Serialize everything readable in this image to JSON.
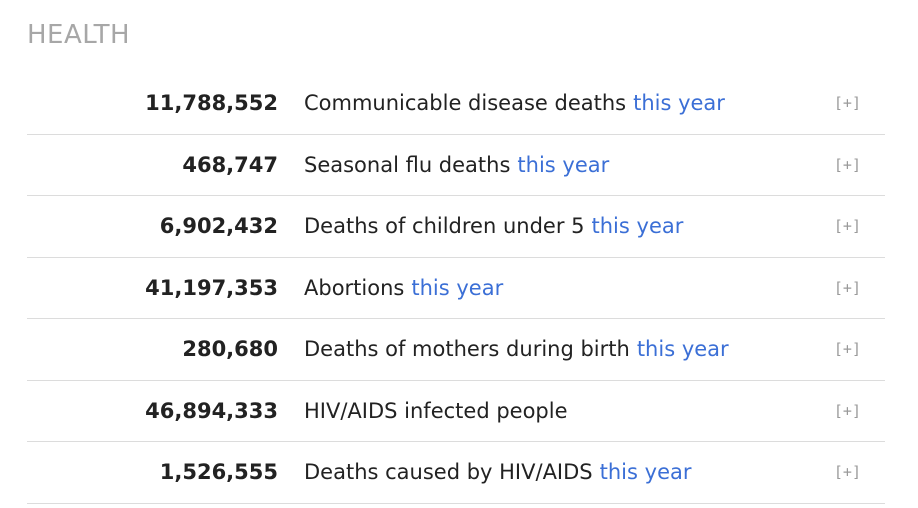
{
  "section": {
    "title": "HEALTH"
  },
  "rows": [
    {
      "count": "11,788,552",
      "label": "Communicable disease deaths",
      "suffix": "this year",
      "expand": "[+]"
    },
    {
      "count": "468,747",
      "label": "Seasonal flu deaths",
      "suffix": "this year",
      "expand": "[+]"
    },
    {
      "count": "6,902,432",
      "label": "Deaths of children under 5",
      "suffix": "this year",
      "expand": "[+]"
    },
    {
      "count": "41,197,353",
      "label": "Abortions",
      "suffix": "this year",
      "expand": "[+]"
    },
    {
      "count": "280,680",
      "label": "Deaths of mothers during birth",
      "suffix": "this year",
      "expand": "[+]"
    },
    {
      "count": "46,894,333",
      "label": "HIV/AIDS infected people",
      "suffix": "",
      "expand": "[+]"
    },
    {
      "count": "1,526,555",
      "label": "Deaths caused by HIV/AIDS",
      "suffix": "this year",
      "expand": "[+]"
    }
  ],
  "colors": {
    "link": "#3b6fd6",
    "title": "#a7a7a7",
    "divider": "#dcdcdc"
  }
}
